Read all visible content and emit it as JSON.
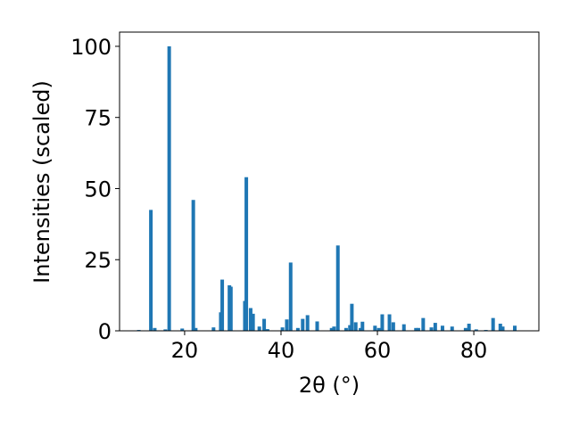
{
  "chart_data": {
    "type": "bar",
    "xlabel": "2θ (°)",
    "ylabel": "Intensities (scaled)",
    "xlim": [
      6.5,
      93.5
    ],
    "ylim": [
      0,
      105
    ],
    "xticks": [
      20,
      40,
      60,
      80
    ],
    "yticks": [
      0,
      25,
      50,
      75,
      100
    ],
    "bar_color": "#1f77b4",
    "grid": false,
    "x": [
      10.5,
      13.0,
      13.8,
      16.0,
      16.8,
      19.5,
      21.8,
      22.3,
      26.0,
      27.5,
      27.8,
      29.3,
      29.6,
      32.5,
      32.8,
      33.7,
      34.2,
      35.5,
      36.5,
      37.2,
      40.3,
      41.2,
      42.0,
      43.5,
      44.5,
      45.5,
      47.5,
      50.5,
      51.0,
      51.8,
      53.5,
      54.3,
      54.7,
      55.5,
      56.5,
      56.9,
      59.5,
      60.3,
      61.0,
      62.5,
      63.3,
      65.5,
      68.0,
      68.5,
      69.5,
      71.2,
      72.0,
      73.5,
      75.5,
      78.3,
      79.0,
      80.5,
      82.5,
      84.0,
      85.5,
      86.0,
      88.5
    ],
    "values": [
      0.3,
      42.5,
      1.0,
      0.5,
      100.0,
      0.8,
      46.0,
      1.0,
      1.2,
      6.5,
      18.0,
      16.0,
      15.5,
      10.5,
      54.0,
      8.0,
      6.0,
      1.5,
      4.2,
      0.6,
      1.2,
      4.0,
      24.0,
      1.0,
      4.2,
      5.5,
      3.3,
      1.0,
      1.5,
      30.0,
      1.0,
      2.0,
      9.5,
      3.0,
      1.0,
      3.2,
      1.8,
      1.0,
      5.8,
      5.8,
      3.0,
      2.3,
      1.0,
      1.0,
      4.5,
      1.2,
      2.8,
      1.8,
      1.5,
      1.0,
      2.5,
      0.5,
      0.3,
      4.5,
      2.5,
      1.5,
      1.8
    ]
  }
}
